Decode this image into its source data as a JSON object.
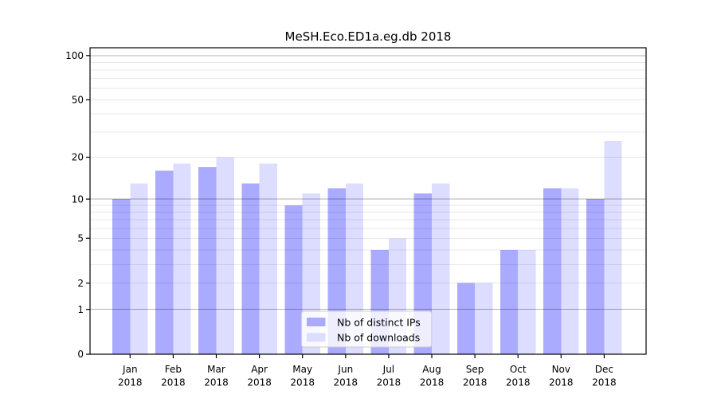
{
  "title": "MeSH.Eco.ED1a.eg.db 2018",
  "colors": {
    "bar_distinct_ips": "#aaaaff",
    "bar_downloads": "#ddddff",
    "grid_major": "#b4b4b4",
    "grid_minor": "#e8e8e8",
    "axis": "#000000",
    "legend_border": "#cccccc",
    "background": "#ffffff"
  },
  "legend": {
    "items": [
      {
        "label": "Nb of distinct IPs",
        "color": "#aaaaff"
      },
      {
        "label": "Nb of downloads",
        "color": "#ddddff"
      }
    ],
    "position": "lower center"
  },
  "chart_data": {
    "type": "bar",
    "title": "MeSH.Eco.ED1a.eg.db 2018",
    "y_scale": "log1p",
    "ylim": [
      0,
      113
    ],
    "y_ticks": [
      0,
      1,
      2,
      5,
      10,
      20,
      50,
      100
    ],
    "grid": {
      "on": true,
      "drawn_above_bars": true,
      "major_at": [
        1,
        10,
        100
      ],
      "minor_at": [
        2,
        3,
        4,
        5,
        6,
        7,
        8,
        9,
        20,
        30,
        40,
        50,
        60,
        70,
        80,
        90
      ]
    },
    "categories": [
      "Jan",
      "Feb",
      "Mar",
      "Apr",
      "May",
      "Jun",
      "Jul",
      "Aug",
      "Sep",
      "Oct",
      "Nov",
      "Dec"
    ],
    "year": "2018",
    "series": [
      {
        "name": "Nb of distinct IPs",
        "color": "#aaaaff",
        "values": [
          10,
          16,
          17,
          13,
          9,
          12,
          4,
          11,
          2,
          4,
          12,
          10
        ]
      },
      {
        "name": "Nb of downloads",
        "color": "#ddddff",
        "values": [
          13,
          18,
          20,
          18,
          11,
          13,
          5,
          13,
          2,
          4,
          12,
          26
        ]
      }
    ],
    "legend_position": "lower center",
    "xlabel": "",
    "ylabel": ""
  }
}
